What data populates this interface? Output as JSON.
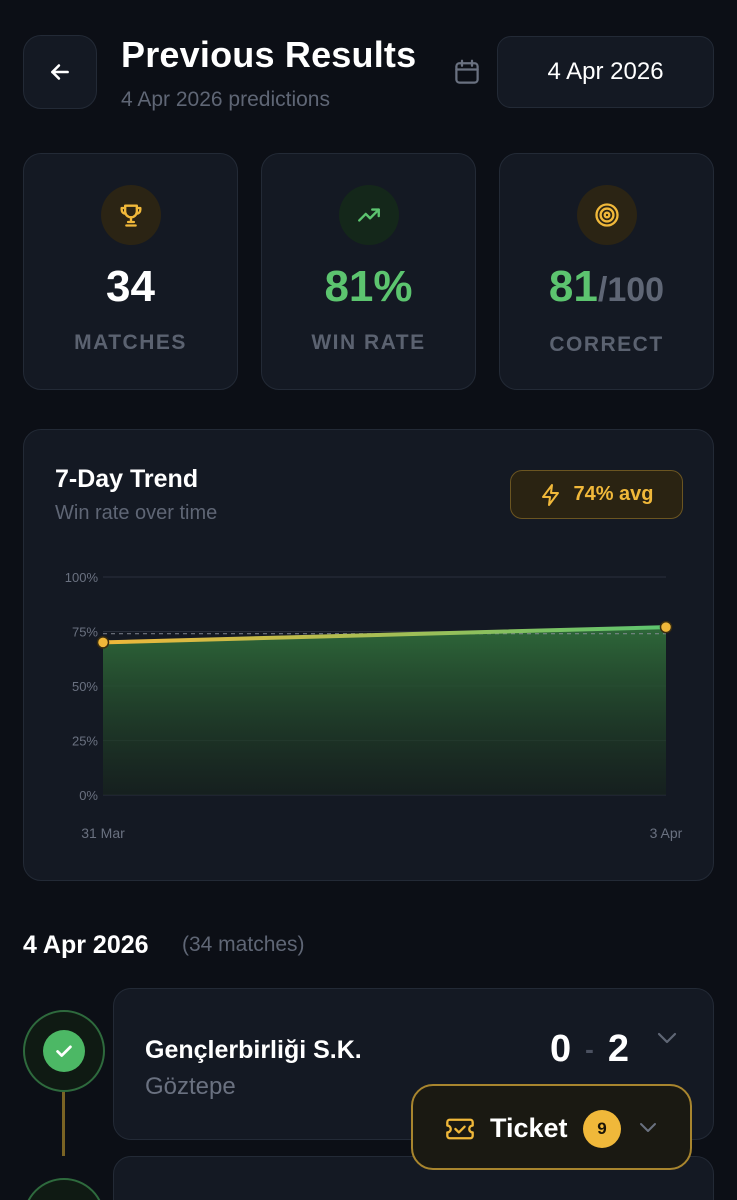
{
  "header": {
    "title": "Previous Results",
    "subtitle": "4 Apr 2026 predictions",
    "date_button": "4 Apr 2026"
  },
  "stats": [
    {
      "value": "34",
      "label": "MATCHES",
      "icon": "trophy-icon",
      "color": "#ffffff"
    },
    {
      "value": "81%",
      "label": "WIN RATE",
      "icon": "trending-up-icon",
      "color": "#5cc46f"
    },
    {
      "value": "81",
      "suffix": "/100",
      "label": "CORRECT",
      "icon": "target-icon",
      "color": "#5cc46f"
    }
  ],
  "trend": {
    "title": "7-Day Trend",
    "subtitle": "Win rate over time",
    "avg_badge": "74% avg"
  },
  "chart_data": {
    "type": "area",
    "x": [
      "31 Mar",
      "3 Apr"
    ],
    "series": [
      {
        "values": [
          70,
          77
        ]
      }
    ],
    "y_ticks": [
      "100%",
      "75%",
      "50%",
      "25%",
      "0%"
    ],
    "ylim": [
      0,
      100
    ],
    "reference_line": 74,
    "grid": true,
    "line_color": "#f0b83a",
    "line_end_color": "#5cc46f"
  },
  "section": {
    "date": "4 Apr 2026",
    "count": "(34 matches)"
  },
  "matches": [
    {
      "home": "Gençlerbirliği S.K.",
      "away": "Göztepe",
      "home_score": "0",
      "separator": "-",
      "away_score": "2",
      "status": "correct"
    }
  ],
  "ticket": {
    "label": "Ticket",
    "count": "9"
  },
  "colors": {
    "background": "#0c0f16",
    "card": "#141923",
    "accent_gold": "#f0b83a",
    "accent_green": "#5cc46f"
  }
}
